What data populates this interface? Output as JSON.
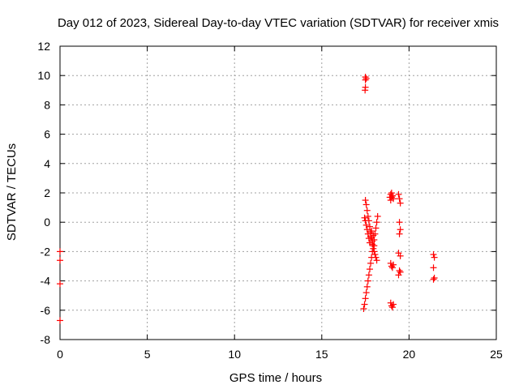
{
  "chart_data": {
    "type": "scatter",
    "title": "Day 012 of 2023, Sidereal Day-to-day VTEC variation (SDTVAR) for receiver xmis",
    "xlabel": "GPS time / hours",
    "ylabel": "SDTVAR / TECUs",
    "xlim": [
      0,
      25
    ],
    "ylim": [
      -8,
      12
    ],
    "xticks": [
      0,
      5,
      10,
      15,
      20,
      25
    ],
    "yticks": [
      -8,
      -6,
      -4,
      -2,
      0,
      2,
      4,
      6,
      8,
      10,
      12
    ],
    "grid": true,
    "marker": "plus",
    "color": "#ff0000",
    "series": [
      {
        "x": [
          0.0,
          0.0,
          0.0,
          0.0,
          17.5,
          17.5,
          17.55,
          17.5,
          17.48,
          17.4,
          17.45,
          17.5,
          17.55,
          17.6,
          17.65,
          17.7,
          17.75,
          17.8,
          17.85,
          17.9,
          17.95,
          18.0,
          18.05,
          18.1,
          18.15,
          18.2,
          17.5,
          17.55,
          17.6,
          17.65,
          17.7,
          17.75,
          17.8,
          17.85,
          17.9,
          17.95,
          18.0,
          18.05,
          18.1,
          18.15,
          17.45,
          17.5,
          17.55,
          17.6,
          17.65,
          17.7,
          17.75,
          17.8,
          17.85,
          17.9,
          17.95,
          18.0,
          18.9,
          18.95,
          19.0,
          19.05,
          19.1,
          18.95,
          19.0,
          19.05,
          18.95,
          19.0,
          19.05,
          19.1,
          18.95,
          19.0,
          19.05,
          19.1,
          19.4,
          19.45,
          19.5,
          19.45,
          19.5,
          19.45,
          19.4,
          19.5,
          19.45,
          19.4,
          19.5,
          21.4,
          21.45,
          21.4,
          21.45,
          21.4
        ],
        "y": [
          -2.0,
          -2.6,
          -4.2,
          -6.7,
          9.9,
          9.7,
          9.8,
          9.2,
          9.0,
          -5.9,
          -5.6,
          -5.2,
          -4.8,
          -4.4,
          -4.0,
          -3.6,
          -3.2,
          -2.8,
          -2.4,
          -2.0,
          -1.6,
          -1.2,
          -0.8,
          -0.4,
          0.0,
          0.4,
          1.5,
          1.2,
          0.8,
          0.4,
          0.1,
          -0.3,
          -0.7,
          -1.1,
          -1.5,
          -1.8,
          -2.0,
          -2.2,
          -2.4,
          -2.6,
          0.3,
          0.1,
          -0.2,
          -0.5,
          -0.8,
          -1.1,
          -1.4,
          -1.0,
          -0.6,
          -1.3,
          -0.9,
          -1.6,
          1.7,
          1.9,
          2.0,
          1.8,
          1.6,
          1.5,
          1.7,
          1.8,
          -2.8,
          -3.0,
          -3.1,
          -2.9,
          -5.5,
          -5.7,
          -5.8,
          -5.6,
          1.9,
          1.6,
          1.3,
          0.0,
          -0.5,
          -0.8,
          -2.1,
          -2.3,
          -3.3,
          -3.6,
          -3.4,
          -2.2,
          -2.4,
          -3.1,
          -3.8,
          -3.9
        ]
      }
    ]
  }
}
